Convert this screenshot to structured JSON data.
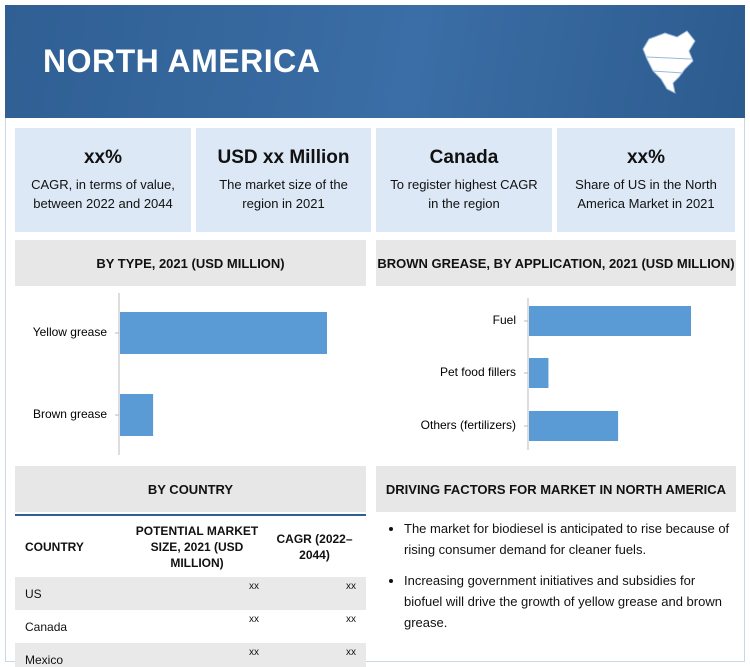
{
  "header": {
    "title": "NORTH AMERICA"
  },
  "highlights": [
    {
      "value": "xx%",
      "text": "CAGR, in terms of value, between 2022 and 2044"
    },
    {
      "value": "USD xx Million",
      "text": "The market size of the region in 2021"
    },
    {
      "value": "Canada",
      "text": "To register highest CAGR in the region"
    },
    {
      "value": "xx%",
      "text": "Share of US in the North America Market in 2021"
    }
  ],
  "chart_data": [
    {
      "type": "bar",
      "title": "BY TYPE, 2021 (USD MILLION)",
      "categories": [
        "Yellow grease",
        "Brown grease"
      ],
      "values": [
        100,
        16
      ],
      "color": "#5b9bd5"
    },
    {
      "type": "bar",
      "title": "BROWN GREASE, BY APPLICATION, 2021 (USD MILLION)",
      "categories": [
        "Fuel",
        "Pet food fillers",
        "Others (fertilizers)"
      ],
      "values": [
        100,
        12,
        55
      ],
      "color": "#5b9bd5"
    }
  ],
  "country": {
    "title": "BY COUNTRY",
    "columns": [
      "COUNTRY",
      "POTENTIAL MARKET SIZE, 2021 (USD MILLION)",
      "CAGR (2022–2044)"
    ],
    "rows": [
      [
        "US",
        "xx",
        "xx"
      ],
      [
        "Canada",
        "xx",
        "xx"
      ],
      [
        "Mexico",
        "xx",
        "xx"
      ]
    ]
  },
  "drivers": {
    "title": "DRIVING FACTORS FOR MARKET IN NORTH AMERICA",
    "items": [
      "The market for biodiesel is anticipated to rise because of rising consumer demand for cleaner fuels.",
      "Increasing government initiatives and subsidies for biofuel will drive the growth of yellow grease and brown grease."
    ]
  }
}
